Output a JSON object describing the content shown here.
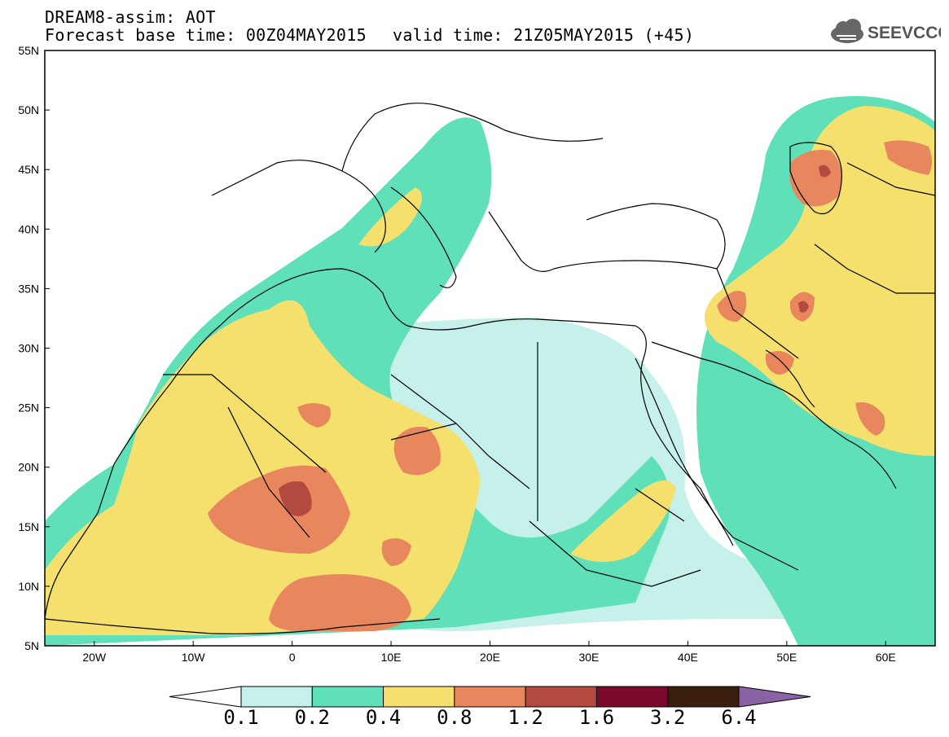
{
  "header": {
    "line1": "DREAM8-assim: AOT",
    "line2_base": "Forecast base time: 00Z04MAY2015",
    "line2_valid": "valid time: 21Z05MAY2015 (+45)"
  },
  "logo": {
    "text": "SEEVCCC",
    "icon": "cloud-icon"
  },
  "axes": {
    "lat_labels": [
      "55N",
      "50N",
      "45N",
      "40N",
      "35N",
      "30N",
      "25N",
      "20N",
      "15N",
      "10N",
      "5N"
    ],
    "lon_labels": [
      "20W",
      "10W",
      "0",
      "10E",
      "20E",
      "30E",
      "40E",
      "50E",
      "60E"
    ],
    "lat_range": [
      5,
      55
    ],
    "lon_range": [
      -25,
      65
    ]
  },
  "colorbar": {
    "ticks": [
      "0.1",
      "0.2",
      "0.4",
      "0.8",
      "1.2",
      "1.6",
      "3.2",
      "6.4"
    ],
    "colors": [
      "#ffffff",
      "#c6f0ea",
      "#5fe0b8",
      "#f5e06e",
      "#e8875e",
      "#b24a3f",
      "#7a0a2a",
      "#3a1e0e",
      "#8a63a6"
    ]
  }
}
